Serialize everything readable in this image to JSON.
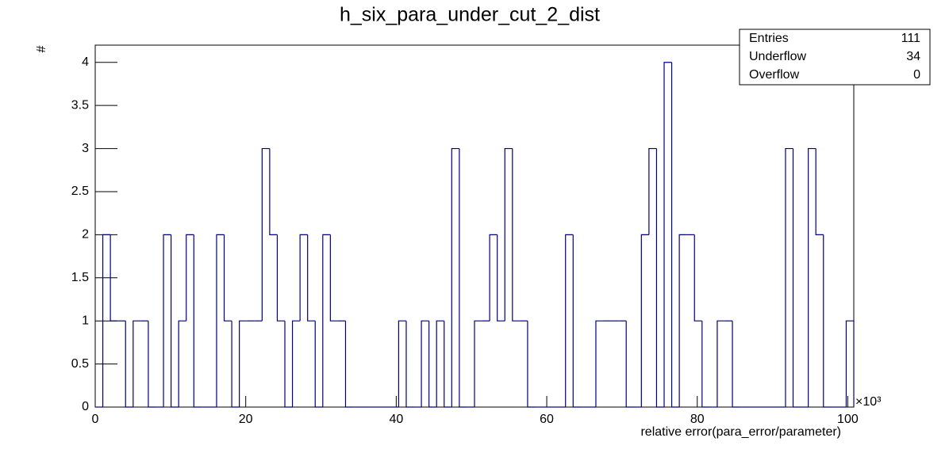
{
  "chart_data": {
    "type": "histogram",
    "title": "h_six_para_under_cut_2_dist",
    "x_label": "relative error(para_error/parameter)",
    "y_label": "#",
    "x_multiplier": "×10³",
    "color": "#000080",
    "bins": [
      0,
      1.008,
      2.016,
      3.024,
      4.032,
      5.04,
      6.048,
      7.056,
      8.064,
      9.072,
      10.08,
      11.088,
      12.096,
      13.104,
      14.112,
      15.12,
      16.128,
      17.136,
      18.144,
      19.152,
      20.16,
      21.168,
      22.176,
      23.184,
      24.192,
      25.2,
      26.208,
      27.216,
      28.224,
      29.232,
      30.24,
      31.248,
      32.256,
      33.264,
      34.272,
      35.28,
      36.288,
      37.296,
      38.304,
      39.312,
      40.32,
      41.328,
      42.336,
      43.344,
      44.352,
      45.36,
      46.368,
      47.376,
      48.384,
      49.392,
      50.4,
      51.408,
      52.416,
      53.424,
      54.432,
      55.44,
      56.448,
      57.456,
      58.464,
      59.472,
      60.48,
      61.488,
      62.496,
      63.504,
      64.512,
      65.52,
      66.528,
      67.536,
      68.544,
      69.552,
      70.56,
      71.568,
      72.576,
      73.584,
      74.592,
      75.6,
      76.608,
      77.616,
      78.624,
      79.632,
      80.64,
      81.648,
      82.656,
      83.664,
      84.672,
      85.68,
      86.688,
      87.696,
      88.704,
      89.712,
      90.72,
      91.728,
      92.736,
      93.744,
      94.752,
      95.76,
      96.768,
      97.776,
      98.784,
      99.792,
      100.8
    ],
    "values": [
      0,
      2,
      1,
      1,
      0,
      1,
      1,
      0,
      0,
      2,
      0,
      1,
      2,
      0,
      0,
      0,
      2,
      1,
      0,
      1,
      1,
      1,
      3,
      2,
      1,
      0,
      1,
      2,
      1,
      0,
      2,
      1,
      1,
      0,
      0,
      0,
      0,
      0,
      0,
      0,
      1,
      0,
      0,
      1,
      0,
      1,
      0,
      3,
      0,
      0,
      1,
      1,
      2,
      1,
      3,
      1,
      1,
      0,
      0,
      0,
      0,
      0,
      2,
      0,
      0,
      0,
      1,
      1,
      1,
      1,
      0,
      0,
      2,
      3,
      0,
      4,
      0,
      2,
      2,
      1,
      0,
      0,
      1,
      1,
      0,
      0,
      0,
      0,
      0,
      0,
      0,
      3,
      0,
      0,
      3,
      2,
      0,
      0,
      0,
      1
    ],
    "xlim": [
      0,
      100.8
    ],
    "xticks": [
      0,
      20,
      40,
      60,
      80,
      100
    ],
    "ylim": [
      0,
      4.2
    ],
    "yticks": [
      0,
      0.5,
      1,
      1.5,
      2,
      2.5,
      3,
      3.5,
      4
    ],
    "stats": [
      [
        "Entries",
        "111"
      ],
      [
        "Underflow",
        "34"
      ],
      [
        "Overflow",
        "0"
      ]
    ]
  }
}
